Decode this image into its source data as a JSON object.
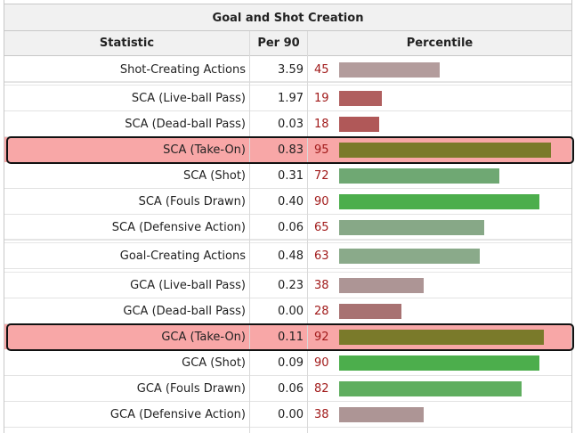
{
  "table": {
    "title": "Goal and Shot Creation",
    "columns": [
      "Statistic",
      "Per 90",
      "Percentile"
    ],
    "rows": [
      {
        "stat": "Shot-Creating Actions",
        "per90": "3.59",
        "percentile": "45",
        "bar_color": "#b39c9c"
      },
      {
        "stat": "SCA (Live-ball Pass)",
        "per90": "1.97",
        "percentile": "19",
        "bar_color": "#b05f5f"
      },
      {
        "stat": "SCA (Dead-ball Pass)",
        "per90": "0.03",
        "percentile": "18",
        "bar_color": "#b05858"
      },
      {
        "stat": "SCA (Take-On)",
        "per90": "0.83",
        "percentile": "95",
        "bar_color": "#7a7a2a",
        "highlighted": true
      },
      {
        "stat": "SCA (Shot)",
        "per90": "0.31",
        "percentile": "72",
        "bar_color": "#6fa873"
      },
      {
        "stat": "SCA (Fouls Drawn)",
        "per90": "0.40",
        "percentile": "90",
        "bar_color": "#4cae4c"
      },
      {
        "stat": "SCA (Defensive Action)",
        "per90": "0.06",
        "percentile": "65",
        "bar_color": "#87a887"
      },
      {
        "stat": "Goal-Creating Actions",
        "per90": "0.48",
        "percentile": "63",
        "bar_color": "#8aaa8a"
      },
      {
        "stat": "GCA (Live-ball Pass)",
        "per90": "0.23",
        "percentile": "38",
        "bar_color": "#ad9595"
      },
      {
        "stat": "GCA (Dead-ball Pass)",
        "per90": "0.00",
        "percentile": "28",
        "bar_color": "#a87272"
      },
      {
        "stat": "GCA (Take-On)",
        "per90": "0.11",
        "percentile": "92",
        "bar_color": "#7a7a2a",
        "highlighted": true
      },
      {
        "stat": "GCA (Shot)",
        "per90": "0.09",
        "percentile": "90",
        "bar_color": "#4cae4c"
      },
      {
        "stat": "GCA (Fouls Drawn)",
        "per90": "0.06",
        "percentile": "82",
        "bar_color": "#5fae5f"
      },
      {
        "stat": "GCA (Defensive Action)",
        "per90": "0.00",
        "percentile": "38",
        "bar_color": "#ad9595"
      }
    ]
  },
  "colors": {
    "highlight_bg": "#f8a7a7",
    "percentile_text": "#a11a1a"
  }
}
